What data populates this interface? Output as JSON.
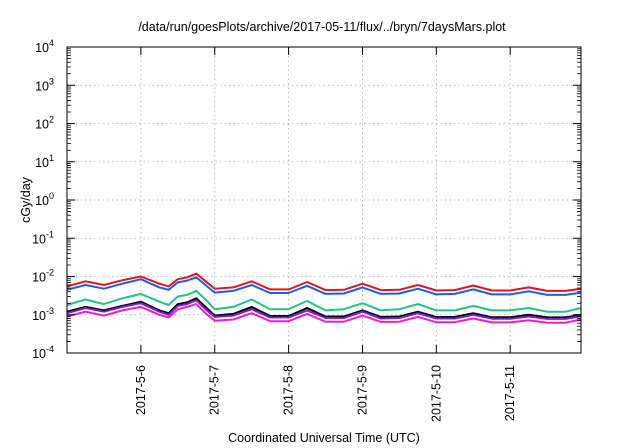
{
  "chart_data": {
    "type": "line",
    "title": "/data/run/goesPlots/archive/2017-05-11/flux/../bryn/7daysMars.plot",
    "xlabel": "Coordinated Universal Time (UTC)",
    "ylabel": "cGy/day",
    "y_scale": "log",
    "ylim": [
      0.0001,
      10000
    ],
    "y_ticks": [
      {
        "base": "10",
        "exp": "-4"
      },
      {
        "base": "10",
        "exp": "-3"
      },
      {
        "base": "10",
        "exp": "-2"
      },
      {
        "base": "10",
        "exp": "-1"
      },
      {
        "base": "10",
        "exp": "0"
      },
      {
        "base": "10",
        "exp": "1"
      },
      {
        "base": "10",
        "exp": "2"
      },
      {
        "base": "10",
        "exp": "3"
      },
      {
        "base": "10",
        "exp": "4"
      }
    ],
    "xlim": [
      "2017-05-05T00:00",
      "2017-05-11T23:00"
    ],
    "x_ticks": [
      "2017-5-6",
      "2017-5-7",
      "2017-5-8",
      "2017-5-9",
      "2017-5-10",
      "2017-5-11"
    ],
    "x_tick_dates": [
      "2017-05-06",
      "2017-05-07",
      "2017-05-08",
      "2017-05-09",
      "2017-05-10",
      "2017-05-11"
    ],
    "grid": true,
    "x": [
      "2017-05-05T00:00",
      "2017-05-05T06:00",
      "2017-05-05T12:00",
      "2017-05-05T18:00",
      "2017-05-06T00:00",
      "2017-05-06T06:00",
      "2017-05-06T09:00",
      "2017-05-06T12:00",
      "2017-05-06T15:00",
      "2017-05-06T18:00",
      "2017-05-06T21:00",
      "2017-05-07T00:00",
      "2017-05-07T06:00",
      "2017-05-07T12:00",
      "2017-05-07T18:00",
      "2017-05-08T00:00",
      "2017-05-08T06:00",
      "2017-05-08T12:00",
      "2017-05-08T18:00",
      "2017-05-09T00:00",
      "2017-05-09T06:00",
      "2017-05-09T12:00",
      "2017-05-09T18:00",
      "2017-05-10T00:00",
      "2017-05-10T06:00",
      "2017-05-10T12:00",
      "2017-05-10T18:00",
      "2017-05-11T00:00",
      "2017-05-11T06:00",
      "2017-05-11T12:00",
      "2017-05-11T18:00",
      "2017-05-11T23:00"
    ],
    "series": [
      {
        "color": "#e8141c",
        "values": [
          0.0055,
          0.0075,
          0.006,
          0.008,
          0.01,
          0.0065,
          0.0055,
          0.0085,
          0.0095,
          0.012,
          0.0075,
          0.0048,
          0.0052,
          0.0075,
          0.0046,
          0.0046,
          0.0072,
          0.0044,
          0.0045,
          0.0065,
          0.0044,
          0.0045,
          0.006,
          0.0043,
          0.0044,
          0.0058,
          0.0043,
          0.0043,
          0.0052,
          0.0042,
          0.0042,
          0.0048
        ]
      },
      {
        "color": "#1f5ce6",
        "values": [
          0.0045,
          0.006,
          0.0048,
          0.0065,
          0.0085,
          0.0052,
          0.0045,
          0.007,
          0.0078,
          0.0095,
          0.006,
          0.0038,
          0.0042,
          0.006,
          0.0037,
          0.0037,
          0.0057,
          0.0035,
          0.0036,
          0.0052,
          0.0035,
          0.0036,
          0.0048,
          0.0034,
          0.0035,
          0.0046,
          0.0034,
          0.0034,
          0.0041,
          0.0033,
          0.0033,
          0.0038
        ]
      },
      {
        "color": "#22c28c",
        "values": [
          0.0018,
          0.0025,
          0.0019,
          0.0027,
          0.0035,
          0.0022,
          0.0018,
          0.003,
          0.0033,
          0.0042,
          0.0025,
          0.0014,
          0.0016,
          0.0025,
          0.0014,
          0.0014,
          0.0023,
          0.0013,
          0.0014,
          0.002,
          0.0013,
          0.0014,
          0.0019,
          0.0013,
          0.0013,
          0.0017,
          0.0013,
          0.0013,
          0.0015,
          0.0012,
          0.0012,
          0.0015
        ]
      },
      {
        "color": "#000000",
        "values": [
          0.0012,
          0.0016,
          0.0013,
          0.0017,
          0.0022,
          0.0013,
          0.0011,
          0.0019,
          0.0021,
          0.0027,
          0.0016,
          0.00095,
          0.00105,
          0.0016,
          0.00093,
          0.00093,
          0.0015,
          0.0009,
          0.0009,
          0.0013,
          0.00088,
          0.0009,
          0.0012,
          0.00087,
          0.00088,
          0.0011,
          0.00086,
          0.00086,
          0.001,
          0.00085,
          0.00085,
          0.001
        ]
      },
      {
        "color": "#7a1ecc",
        "values": [
          0.0011,
          0.0015,
          0.0012,
          0.0016,
          0.002,
          0.0012,
          0.001,
          0.0017,
          0.0019,
          0.0024,
          0.0014,
          0.00088,
          0.00095,
          0.0014,
          0.00085,
          0.00085,
          0.0013,
          0.00082,
          0.00082,
          0.0012,
          0.0008,
          0.00082,
          0.0011,
          0.0008,
          0.0008,
          0.001,
          0.00079,
          0.00079,
          0.0009,
          0.00078,
          0.00078,
          0.00092
        ]
      },
      {
        "color": "#f01ec8",
        "values": [
          0.0009,
          0.0012,
          0.00095,
          0.0013,
          0.0016,
          0.001,
          0.00085,
          0.0014,
          0.0016,
          0.0019,
          0.0011,
          0.0007,
          0.00075,
          0.0011,
          0.00068,
          0.00068,
          0.00105,
          0.00066,
          0.00066,
          0.00095,
          0.00065,
          0.00066,
          0.00088,
          0.00064,
          0.00064,
          0.0008,
          0.00063,
          0.00063,
          0.00072,
          0.00062,
          0.00062,
          0.00075
        ]
      }
    ]
  }
}
